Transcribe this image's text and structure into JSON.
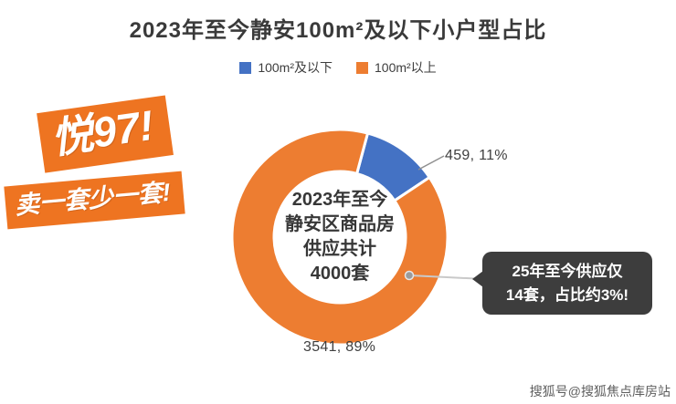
{
  "header": {
    "title": "2023年至今静安100m²及以下小户型占比"
  },
  "chart_data": {
    "type": "pie",
    "donut": true,
    "title": "2023年至今静安100m²及以下小户型占比",
    "rotation_deg": 15,
    "legend_position": "top",
    "total": 4000,
    "slices": [
      {
        "key": "under-100",
        "name": "100m²及以下",
        "value": 459,
        "percent": "11%",
        "label": "459, 11%",
        "color": "#4472c4"
      },
      {
        "key": "over-100",
        "name": "100m²以上",
        "value": 3541,
        "percent": "89%",
        "label": "3541, 89%",
        "color": "#ed7d31"
      }
    ],
    "center_text": [
      "2023年至今",
      "静安区商品房",
      "供应共计",
      "4000套"
    ]
  },
  "stickers": {
    "line1": "悦97!",
    "line2": "卖一套少一套!"
  },
  "callout": {
    "lines": [
      "25年至今供应仅",
      "14套，占比约3%!"
    ]
  },
  "footer": {
    "watermark": "搜狐号@搜狐焦点库房站"
  }
}
